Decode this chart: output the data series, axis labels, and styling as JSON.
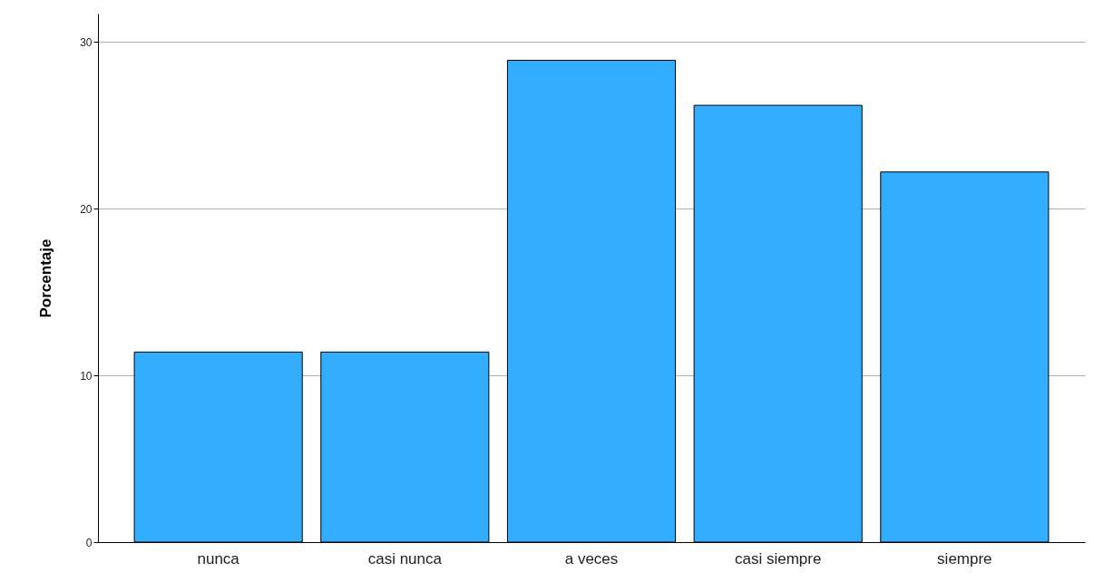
{
  "chart_data": {
    "type": "bar",
    "ylabel": "Porcentaje",
    "categories": [
      "nunca",
      "casi nunca",
      "a veces",
      "casi siempre",
      "siempre"
    ],
    "values": [
      11.4,
      11.4,
      28.9,
      26.2,
      22.2
    ],
    "color": "#33adff",
    "ylim": [
      0,
      31.7
    ],
    "yticks": [
      0,
      10,
      20,
      30
    ],
    "grid": "y"
  }
}
